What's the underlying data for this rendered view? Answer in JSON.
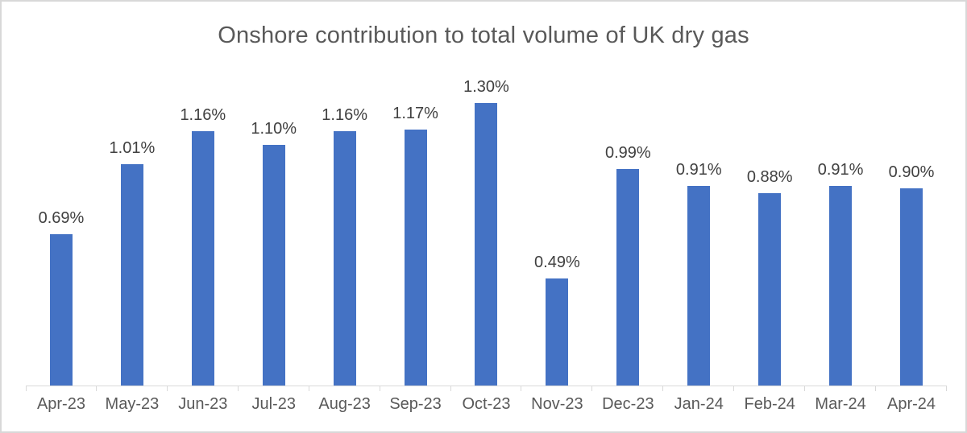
{
  "chart_data": {
    "type": "bar",
    "title": "Onshore contribution to total volume of UK dry gas",
    "categories": [
      "Apr-23",
      "May-23",
      "Jun-23",
      "Jul-23",
      "Aug-23",
      "Sep-23",
      "Oct-23",
      "Nov-23",
      "Dec-23",
      "Jan-24",
      "Feb-24",
      "Mar-24",
      "Apr-24"
    ],
    "values": [
      0.69,
      1.01,
      1.16,
      1.1,
      1.16,
      1.17,
      1.3,
      0.49,
      0.99,
      0.91,
      0.88,
      0.91,
      0.9
    ],
    "data_labels": [
      "0.69%",
      "1.01%",
      "1.16%",
      "1.10%",
      "1.16%",
      "1.17%",
      "1.30%",
      "0.49%",
      "0.99%",
      "0.91%",
      "0.88%",
      "0.91%",
      "0.90%"
    ],
    "xlabel": "",
    "ylabel": "",
    "ylim": [
      0,
      1.4
    ],
    "gridlines": false,
    "legend_position": "none",
    "bar_color": "#4472c4",
    "axis_line_color": "#d9d9d9",
    "title_color": "#595959",
    "axis_text_color": "#595959",
    "data_label_color": "#404040",
    "background_color": "#ffffff",
    "frame_border_color": "#d8d8d8"
  }
}
